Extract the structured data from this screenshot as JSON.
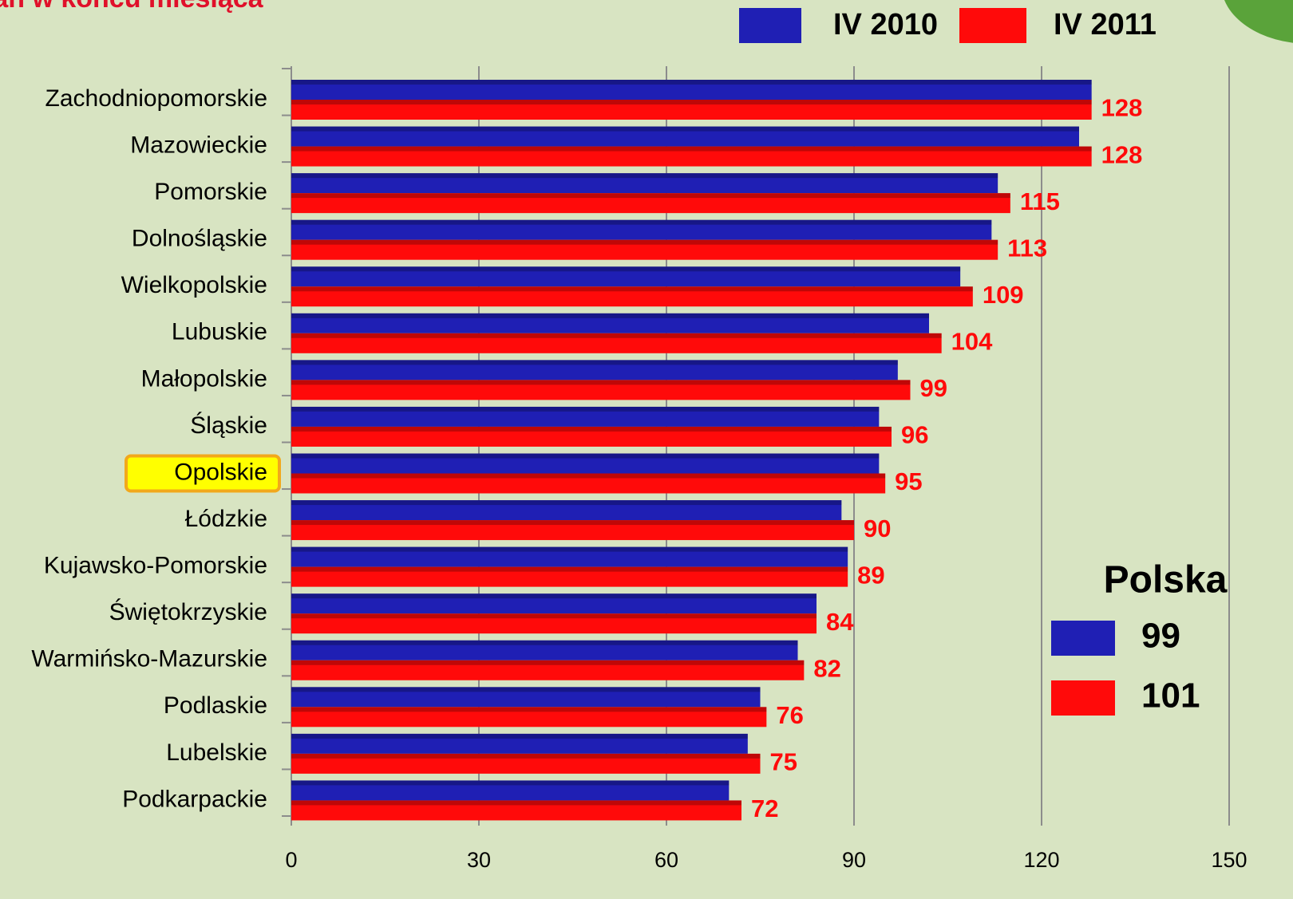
{
  "chart_data": {
    "type": "hbar",
    "title": "tan w końcu miesiąca",
    "categories": [
      "Zachodniopomorskie",
      "Mazowieckie",
      "Pomorskie",
      "Dolnośląskie",
      "Wielkopolskie",
      "Lubuskie",
      "Małopolskie",
      "Śląskie",
      "Opolskie",
      "Łódzkie",
      "Kujawsko-Pomorskie",
      "Świętokrzyskie",
      "Warmińsko-Mazurskie",
      "Podlaskie",
      "Lubelskie",
      "Podkarpackie"
    ],
    "series": [
      {
        "name": "IV 2010",
        "color": "#1f1fb4",
        "values": [
          128,
          126,
          113,
          112,
          107,
          102,
          97,
          94,
          94,
          88,
          89,
          84,
          81,
          75,
          73,
          70
        ]
      },
      {
        "name": "IV 2011",
        "color": "#ff0a0a",
        "data_labels": true,
        "values": [
          128,
          128,
          115,
          113,
          109,
          104,
          99,
          96,
          95,
          90,
          89,
          84,
          82,
          76,
          75,
          72
        ]
      }
    ],
    "highlight": "Opolskie",
    "xlim": [
      0,
      150
    ],
    "xticks": [
      0,
      30,
      60,
      90,
      120,
      150
    ],
    "grid": true,
    "summary": {
      "title": "Polska",
      "values": [
        99,
        101
      ]
    }
  }
}
